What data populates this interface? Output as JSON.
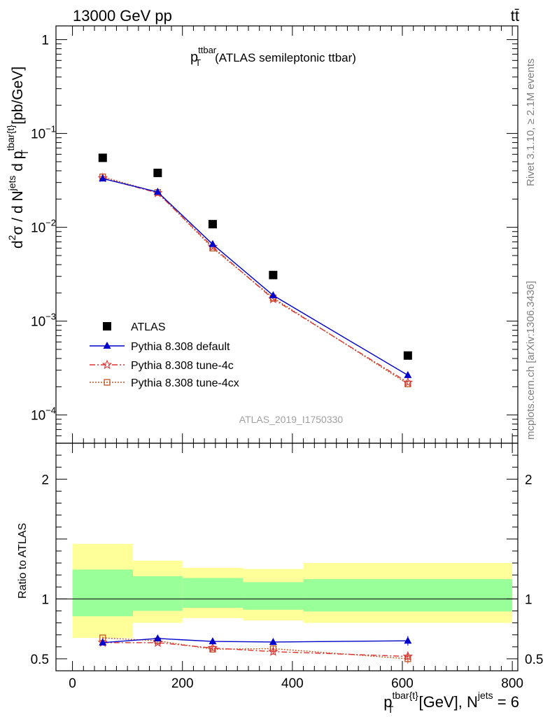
{
  "header": {
    "left": "13000 GeV pp",
    "right": "tt̄"
  },
  "side": {
    "rivet": "Rivet 3.1.10, ≥ 2.1M events",
    "mcplots": "mcplots.cern.ch [arXiv:1306.3436]"
  },
  "chart_data": [
    {
      "type": "line",
      "title_main": "p",
      "title_sup": "ttbar",
      "title_sub": "T",
      "title_rest": "(ATLAS semileptonic ttbar)",
      "ylabel": "d²σ / d Nʲᵉᵗˢ d pᵀ^tbar{t} [pb/GeV]",
      "ylabel_parts": {
        "main": "d",
        "sup1": "2",
        "sigma": "σ  /  d N",
        "sup2": "jets",
        "mid": " d p",
        "sup3": "tbar{t}",
        "sub": "T",
        "unit": " [pb/GeV]"
      },
      "yscale": "log",
      "ylim": [
        5e-05,
        1.4
      ],
      "xlim": [
        -30,
        810
      ],
      "y_ticks": [
        {
          "value": 1,
          "label": "1"
        },
        {
          "value": 0.1,
          "base": "10",
          "exp": "−1"
        },
        {
          "value": 0.01,
          "base": "10",
          "exp": "−2"
        },
        {
          "value": 0.001,
          "base": "10",
          "exp": "−3"
        },
        {
          "value": 0.0001,
          "base": "10",
          "exp": "−4"
        }
      ],
      "watermark": "ATLAS_2019_I1750330",
      "x": [
        55,
        155,
        255,
        365,
        610
      ],
      "series": [
        {
          "name": "ATLAS",
          "values": [
            0.055,
            0.038,
            0.0108,
            0.0031,
            0.00043
          ],
          "color": "#000000",
          "marker": "square",
          "line": "none"
        },
        {
          "name": "Pythia 8.308 default",
          "values": [
            0.033,
            0.0238,
            0.0066,
            0.00188,
            0.000265
          ],
          "color": "#0000cc",
          "marker": "triangle",
          "line": "solid"
        },
        {
          "name": "Pythia 8.308 tune-4c",
          "values": [
            0.0335,
            0.0232,
            0.0062,
            0.00172,
            0.000222
          ],
          "color": "#dd3333",
          "marker": "star",
          "line": "dashdot"
        },
        {
          "name": "Pythia 8.308 tune-4cx",
          "values": [
            0.0345,
            0.0235,
            0.006,
            0.00177,
            0.000214
          ],
          "color": "#bb5522",
          "marker": "open-square",
          "line": "dotted"
        }
      ]
    },
    {
      "type": "line",
      "ylabel": "Ratio to ATLAS",
      "xlabel_parts": {
        "p": "p",
        "sup1": "tbar{t}",
        "sub": "T",
        "unit": " [GeV], N",
        "sup2": "jets",
        "eq": " = 6"
      },
      "ylim": [
        0.4,
        2.3
      ],
      "xlim": [
        -30,
        810
      ],
      "x_ticks": [
        {
          "value": 0,
          "label": "0"
        },
        {
          "value": 200,
          "label": "200"
        },
        {
          "value": 400,
          "label": "400"
        },
        {
          "value": 600,
          "label": "600"
        },
        {
          "value": 800,
          "label": "800"
        }
      ],
      "y_ticks": [
        {
          "value": 0.5,
          "label": "0.5"
        },
        {
          "value": 1,
          "label": "1"
        },
        {
          "value": 2,
          "label": "2"
        }
      ],
      "bands": [
        {
          "x0": 0,
          "x1": 110,
          "stat_lo": 0.855,
          "stat_hi": 1.245,
          "tot_lo": 0.675,
          "tot_hi": 1.46
        },
        {
          "x0": 110,
          "x1": 200,
          "stat_lo": 0.9,
          "stat_hi": 1.19,
          "tot_lo": 0.8,
          "tot_hi": 1.32
        },
        {
          "x0": 200,
          "x1": 310,
          "stat_lo": 0.925,
          "stat_hi": 1.175,
          "tot_lo": 0.84,
          "tot_hi": 1.26
        },
        {
          "x0": 310,
          "x1": 420,
          "stat_lo": 0.91,
          "stat_hi": 1.14,
          "tot_lo": 0.82,
          "tot_hi": 1.25
        },
        {
          "x0": 420,
          "x1": 800,
          "stat_lo": 0.895,
          "stat_hi": 1.165,
          "tot_lo": 0.8,
          "tot_hi": 1.3
        }
      ],
      "band_colors": {
        "stat": "#99ff99",
        "total": "#ffff99"
      },
      "x": [
        55,
        155,
        255,
        365,
        610
      ],
      "series": [
        {
          "name": "Pythia 8.308 default",
          "values": [
            0.635,
            0.67,
            0.645,
            0.64,
            0.65
          ],
          "errors": [
            0.01,
            0.012,
            0.012,
            0.025,
            0.04
          ],
          "color": "#0000cc",
          "marker": "triangle",
          "line": "solid"
        },
        {
          "name": "Pythia 8.308 tune-4c",
          "values": [
            0.635,
            0.635,
            0.59,
            0.56,
            0.52
          ],
          "errors": [
            0.01,
            0.012,
            0.012,
            0.025,
            0.04
          ],
          "color": "#dd3333",
          "marker": "star",
          "line": "dashdot"
        },
        {
          "name": "Pythia 8.308 tune-4cx",
          "values": [
            0.675,
            0.65,
            0.58,
            0.585,
            0.5
          ],
          "errors": [
            0.01,
            0.012,
            0.012,
            0.025,
            0.04
          ],
          "color": "#bb5522",
          "marker": "open-square",
          "line": "dotted"
        }
      ]
    }
  ]
}
